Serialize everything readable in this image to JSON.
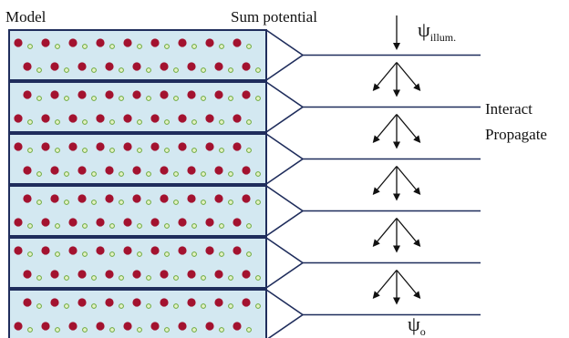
{
  "labels": {
    "model": "Model",
    "sum_potential": "Sum potential",
    "psi_in": {
      "symbol": "ψ",
      "subscript": "illum."
    },
    "interact": "Interact",
    "propagate": "Propagate",
    "psi_out": {
      "symbol": "ψ",
      "subscript": "o"
    }
  }
}
